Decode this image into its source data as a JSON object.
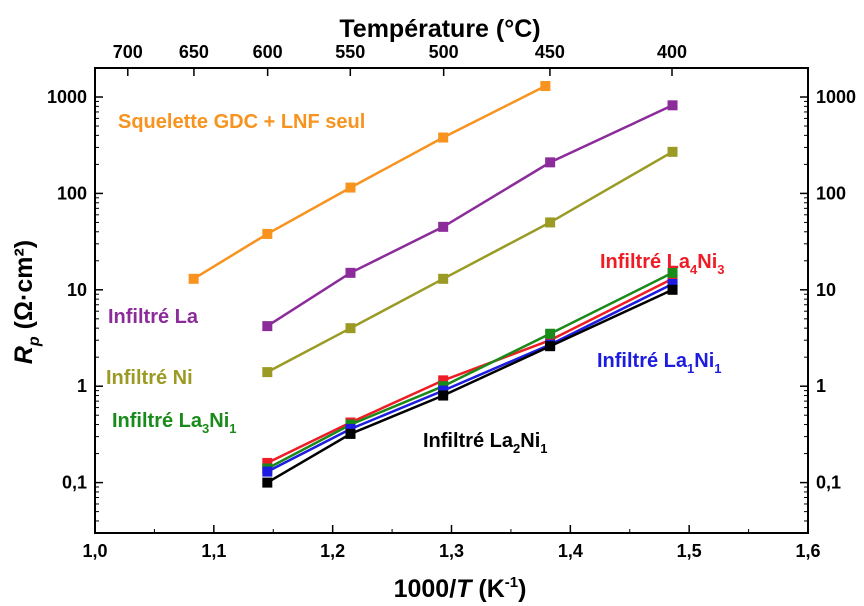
{
  "chart_data": {
    "type": "line",
    "title": "Température (°C)",
    "xlabel_main": "1000/",
    "xlabel_var": "T",
    "xlabel_unit_open": " (K",
    "xlabel_unit_exp": "-1",
    "xlabel_unit_close": ")",
    "ylabel_var": "R",
    "ylabel_sub": "p",
    "ylabel_unit": " (Ω·cm²)",
    "xlim": [
      1.0,
      1.6
    ],
    "ylim": [
      0.03,
      2000
    ],
    "yscale": "log",
    "x_ticks": [
      "1,0",
      "1,1",
      "1,2",
      "1,3",
      "1,4",
      "1,5",
      "1,6"
    ],
    "x_tick_values": [
      1.0,
      1.1,
      1.2,
      1.3,
      1.4,
      1.5,
      1.6
    ],
    "y_ticks": [
      "0,1",
      "1",
      "10",
      "100",
      "1000"
    ],
    "y_tick_values": [
      0.1,
      1,
      10,
      100,
      1000
    ],
    "top_ticks": [
      "700",
      "650",
      "600",
      "550",
      "500",
      "450",
      "400"
    ],
    "top_tick_values": [
      700,
      650,
      600,
      550,
      500,
      450,
      400
    ],
    "series": [
      {
        "name": "Squelette GDC + LNF seul",
        "color": "#f7931e",
        "x": [
          1.083,
          1.145,
          1.215,
          1.293,
          1.379
        ],
        "values": [
          13,
          38,
          115,
          380,
          1300
        ],
        "label_parts": [
          {
            "t": "Squelette GDC + LNF seul"
          }
        ]
      },
      {
        "name": "Infiltré La",
        "color": "#8b2c9a",
        "x": [
          1.145,
          1.215,
          1.293,
          1.383,
          1.486
        ],
        "values": [
          4.2,
          15,
          45,
          210,
          820
        ],
        "label_parts": [
          {
            "t": "Infiltré La"
          }
        ]
      },
      {
        "name": "Infiltré Ni",
        "color": "#9a9a24",
        "x": [
          1.145,
          1.215,
          1.293,
          1.383,
          1.486
        ],
        "values": [
          1.4,
          4.0,
          13,
          50,
          270
        ],
        "label_parts": [
          {
            "t": "Infiltré Ni"
          }
        ]
      },
      {
        "name": "Infiltré La4Ni3",
        "color": "#ee1c25",
        "x": [
          1.145,
          1.215,
          1.293,
          1.383,
          1.486
        ],
        "values": [
          0.16,
          0.42,
          1.15,
          3.0,
          13
        ],
        "label_parts": [
          {
            "t": "Infiltré La"
          },
          {
            "t": "4",
            "sub": true
          },
          {
            "t": "Ni"
          },
          {
            "t": "3",
            "sub": true
          }
        ]
      },
      {
        "name": "Infiltré La3Ni1",
        "color": "#1a8a1a",
        "x": [
          1.145,
          1.215,
          1.293,
          1.383,
          1.486
        ],
        "values": [
          0.14,
          0.4,
          1.0,
          3.5,
          15
        ],
        "label_parts": [
          {
            "t": "Infiltré La"
          },
          {
            "t": "3",
            "sub": true
          },
          {
            "t": "Ni"
          },
          {
            "t": "1",
            "sub": true
          }
        ]
      },
      {
        "name": "Infiltré La1Ni1",
        "color": "#1c1ce0",
        "x": [
          1.145,
          1.215,
          1.293,
          1.383,
          1.486
        ],
        "values": [
          0.13,
          0.36,
          0.9,
          2.7,
          11.5
        ],
        "label_parts": [
          {
            "t": "Infiltré La"
          },
          {
            "t": "1",
            "sub": true
          },
          {
            "t": "Ni"
          },
          {
            "t": "1",
            "sub": true
          }
        ]
      },
      {
        "name": "Infiltré La2Ni1",
        "color": "#000000",
        "x": [
          1.145,
          1.215,
          1.293,
          1.383,
          1.486
        ],
        "values": [
          0.1,
          0.32,
          0.8,
          2.6,
          10
        ],
        "label_parts": [
          {
            "t": "Infiltré La"
          },
          {
            "t": "2",
            "sub": true
          },
          {
            "t": "Ni"
          },
          {
            "t": "1",
            "sub": true
          }
        ]
      }
    ]
  }
}
